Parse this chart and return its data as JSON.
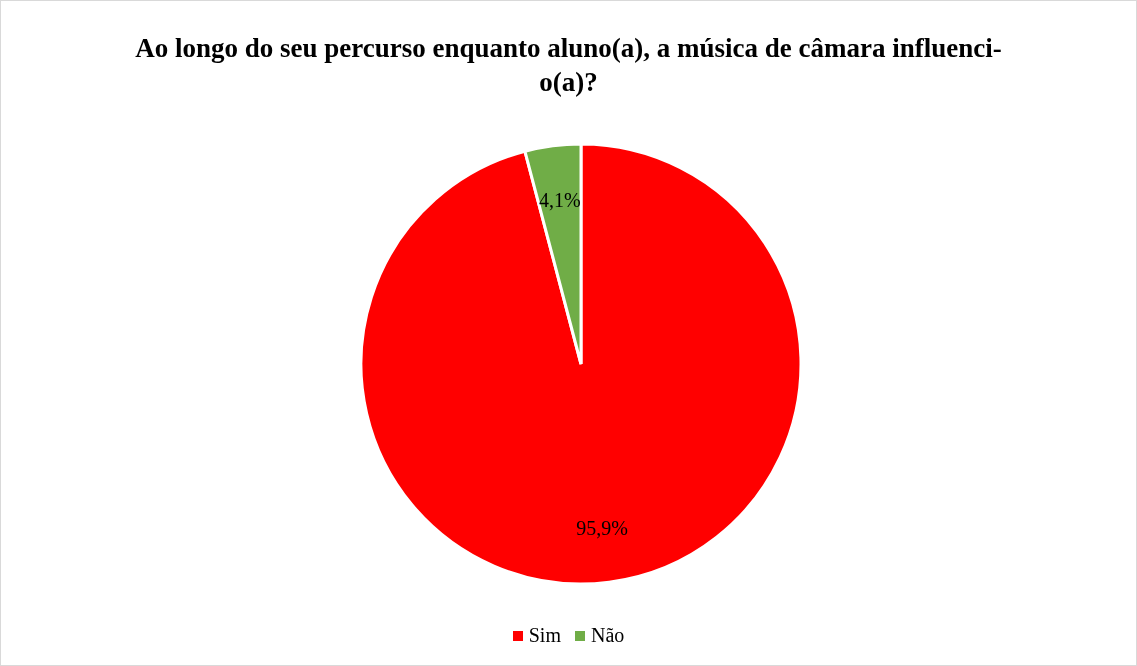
{
  "chart_data": {
    "type": "pie",
    "title": "Ao longo do seu percurso enquanto aluno(a), a música de câmara influenci-o(a)?",
    "categories": [
      "Sim",
      "Não"
    ],
    "values": [
      95.9,
      4.1
    ],
    "colors": [
      "#ff0000",
      "#70ad47"
    ],
    "value_labels": [
      "95,9%",
      "4,1%"
    ],
    "legend": "bottom"
  }
}
